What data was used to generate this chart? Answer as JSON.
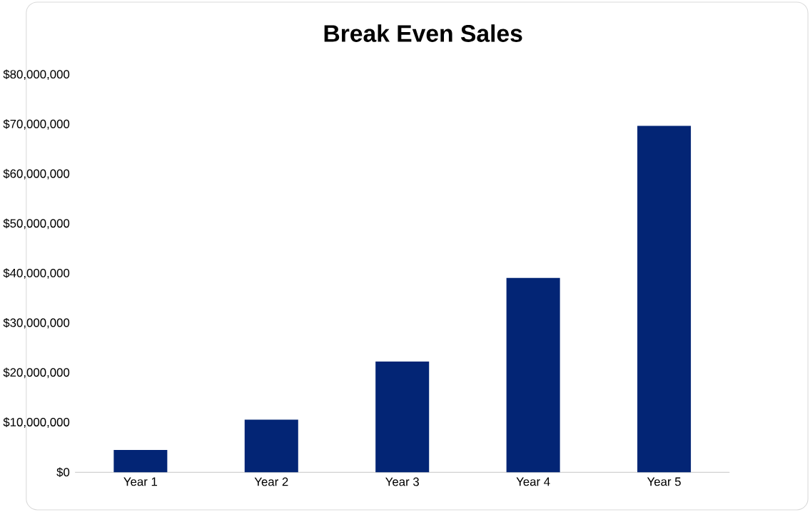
{
  "chart_data": {
    "type": "bar",
    "title": "Break Even Sales",
    "categories": [
      "Year 1",
      "Year 2",
      "Year 3",
      "Year 4",
      "Year 5"
    ],
    "values": [
      4500000,
      10600000,
      22300000,
      39100000,
      69700000
    ],
    "color": "#032575",
    "ylim": [
      0,
      80000000
    ],
    "yticks": [
      {
        "value": 0,
        "label": "$0"
      },
      {
        "value": 10000000,
        "label": "$10,000,000"
      },
      {
        "value": 20000000,
        "label": "$20,000,000"
      },
      {
        "value": 30000000,
        "label": "$30,000,000"
      },
      {
        "value": 40000000,
        "label": "$40,000,000"
      },
      {
        "value": 50000000,
        "label": "$50,000,000"
      },
      {
        "value": 60000000,
        "label": "$60,000,000"
      },
      {
        "value": 70000000,
        "label": "$70,000,000"
      },
      {
        "value": 80000000,
        "label": "$80,000,000"
      }
    ],
    "grid": false
  }
}
